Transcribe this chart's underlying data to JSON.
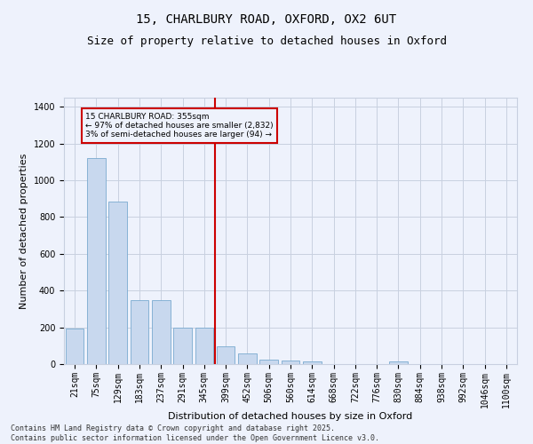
{
  "title_line1": "15, CHARLBURY ROAD, OXFORD, OX2 6UT",
  "title_line2": "Size of property relative to detached houses in Oxford",
  "xlabel": "Distribution of detached houses by size in Oxford",
  "ylabel": "Number of detached properties",
  "categories": [
    "21sqm",
    "75sqm",
    "129sqm",
    "183sqm",
    "237sqm",
    "291sqm",
    "345sqm",
    "399sqm",
    "452sqm",
    "506sqm",
    "560sqm",
    "614sqm",
    "668sqm",
    "722sqm",
    "776sqm",
    "830sqm",
    "884sqm",
    "938sqm",
    "992sqm",
    "1046sqm",
    "1100sqm"
  ],
  "values": [
    193,
    1120,
    885,
    350,
    350,
    197,
    197,
    96,
    57,
    22,
    20,
    15,
    0,
    0,
    0,
    15,
    0,
    0,
    0,
    0,
    0
  ],
  "bar_color": "#c8d8ee",
  "bar_edge_color": "#7aaad0",
  "vline_color": "#cc0000",
  "annotation_text": "15 CHARLBURY ROAD: 355sqm\n← 97% of detached houses are smaller (2,832)\n3% of semi-detached houses are larger (94) →",
  "annotation_box_color": "#cc0000",
  "ylim": [
    0,
    1450
  ],
  "yticks": [
    0,
    200,
    400,
    600,
    800,
    1000,
    1200,
    1400
  ],
  "footer_text": "Contains HM Land Registry data © Crown copyright and database right 2025.\nContains public sector information licensed under the Open Government Licence v3.0.",
  "bg_color": "#eef2fc",
  "grid_color": "#c8d0e0",
  "title_fontsize": 10,
  "subtitle_fontsize": 9,
  "tick_fontsize": 7,
  "label_fontsize": 8,
  "footer_fontsize": 6
}
